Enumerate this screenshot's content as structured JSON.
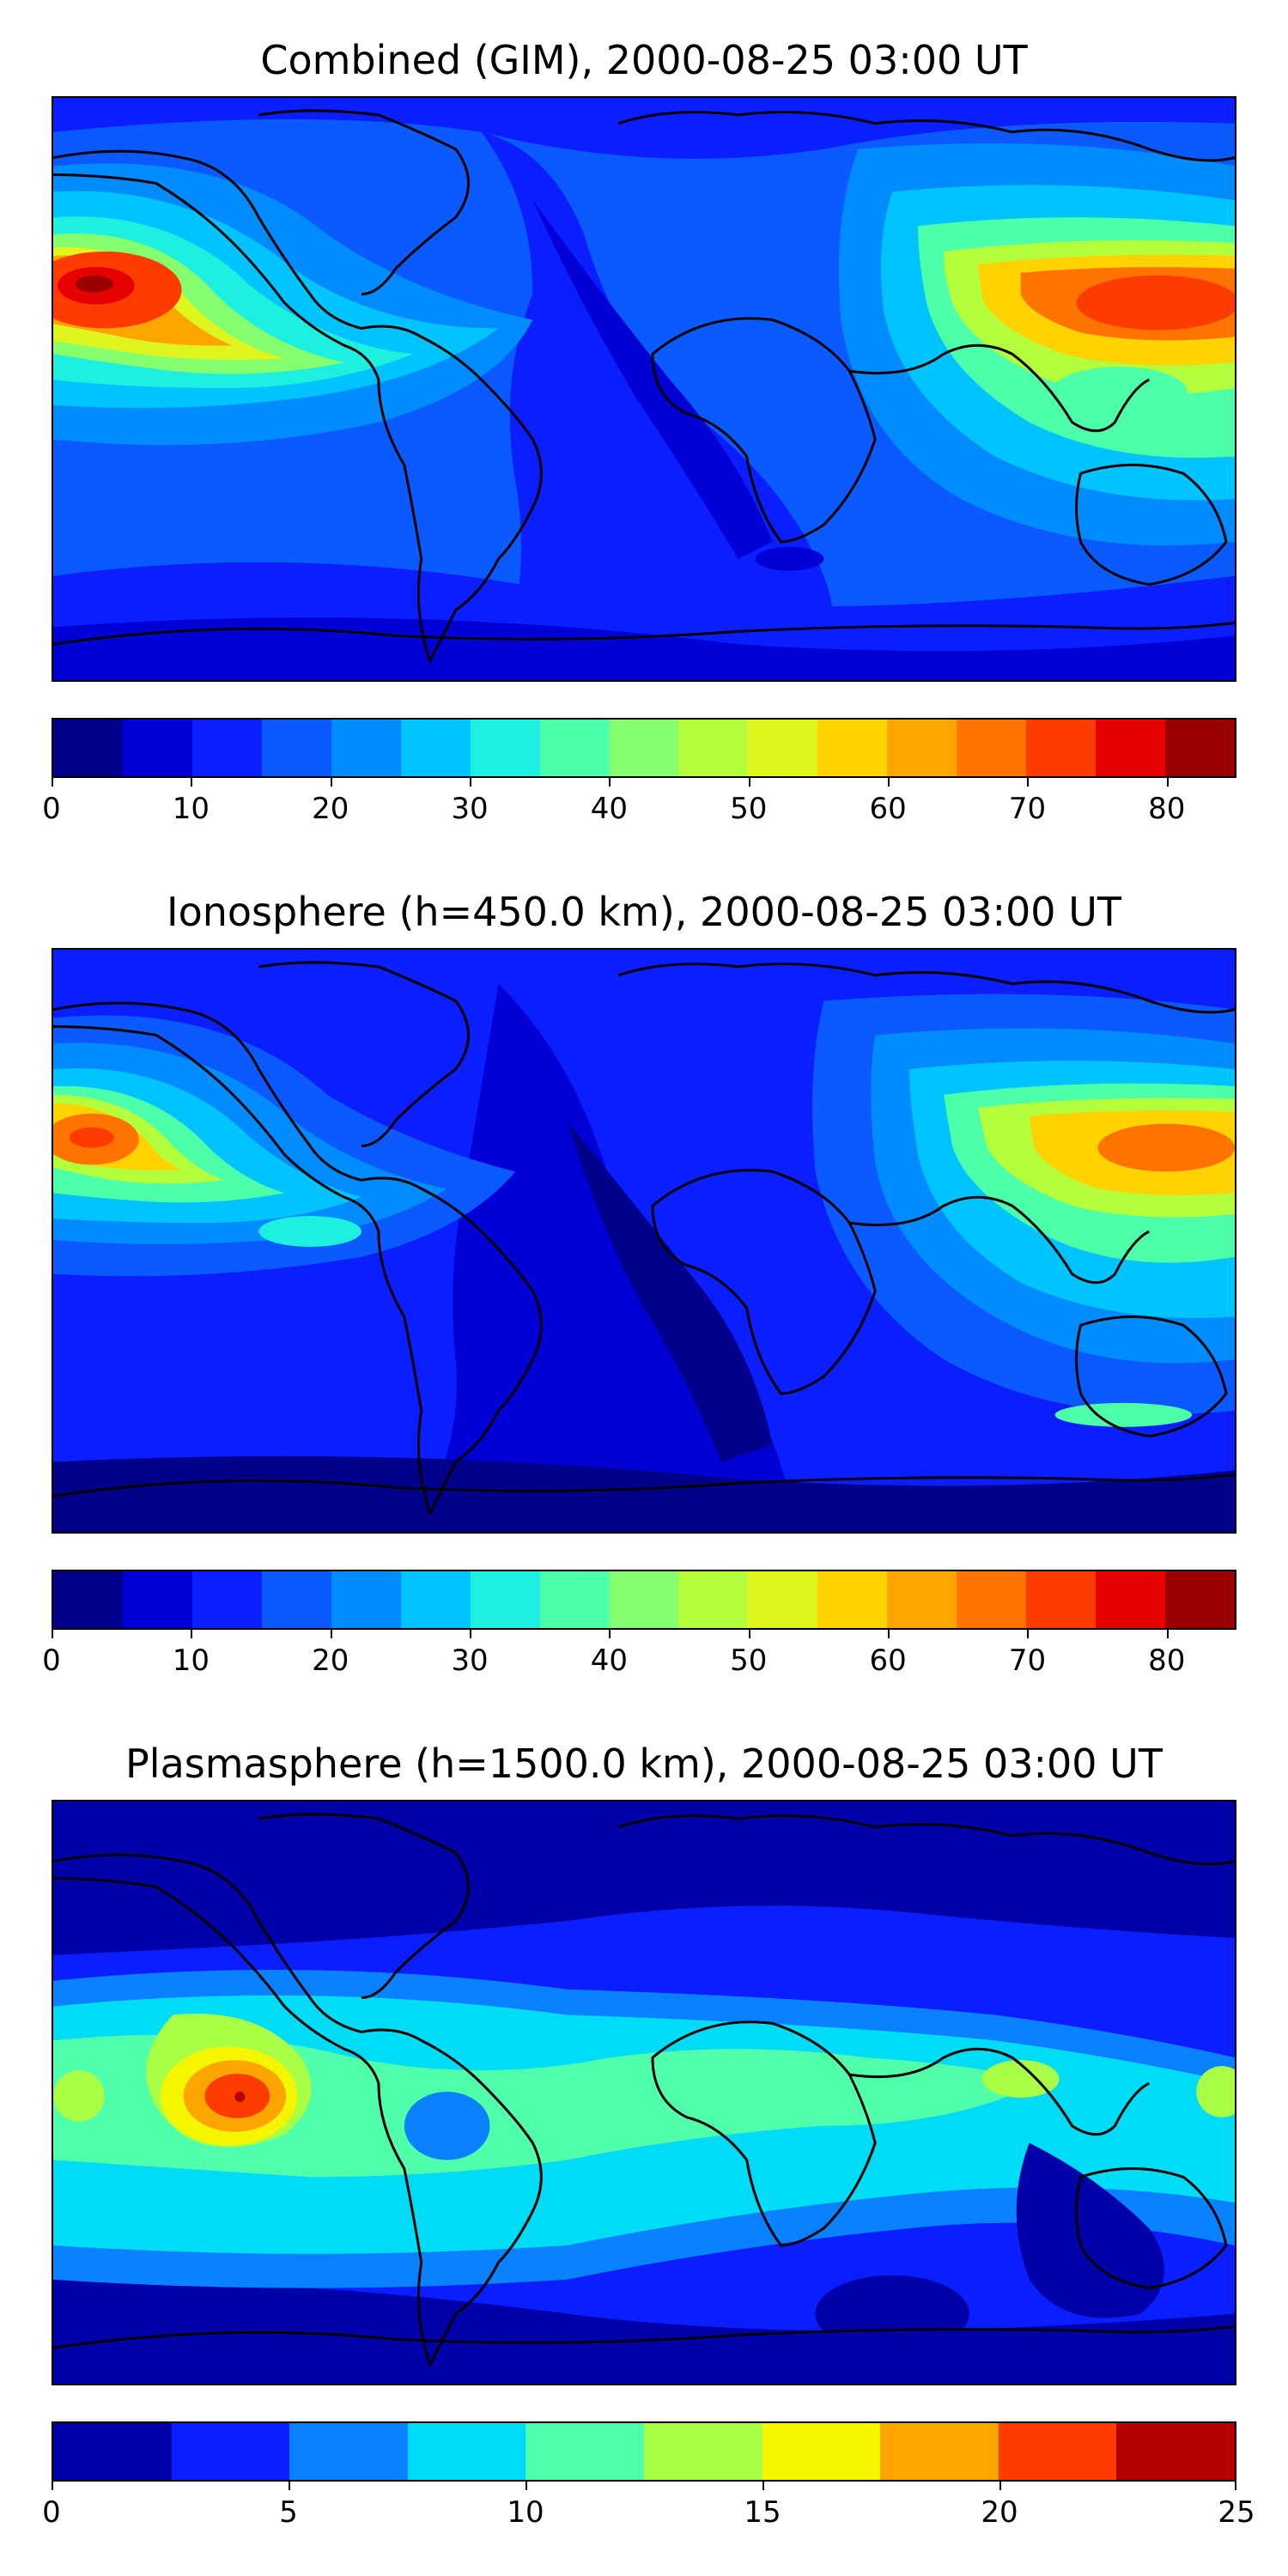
{
  "panels": [
    {
      "title": "Combined (GIM), 2000-08-25 03:00 UT",
      "colorbar": {
        "min": 0,
        "max": 85,
        "tick_labels": [
          "0",
          "10",
          "20",
          "30",
          "40",
          "50",
          "60",
          "70",
          "80"
        ],
        "tick_values": [
          0,
          10,
          20,
          30,
          40,
          50,
          60,
          70,
          80
        ],
        "colors": [
          "#00008b",
          "#0000d6",
          "#0a1eff",
          "#0a5aff",
          "#008cff",
          "#00c4ff",
          "#1ef0e0",
          "#4cffa8",
          "#86ff6e",
          "#b4ff3c",
          "#e0f51e",
          "#ffd200",
          "#ffa500",
          "#ff7300",
          "#ff3c00",
          "#e60000",
          "#9b0000"
        ]
      }
    },
    {
      "title": "Ionosphere  (h=450.0 km), 2000-08-25 03:00 UT",
      "colorbar": {
        "min": 0,
        "max": 85,
        "tick_labels": [
          "0",
          "10",
          "20",
          "30",
          "40",
          "50",
          "60",
          "70",
          "80"
        ],
        "tick_values": [
          0,
          10,
          20,
          30,
          40,
          50,
          60,
          70,
          80
        ],
        "colors": [
          "#00008b",
          "#0000d6",
          "#0a1eff",
          "#0a5aff",
          "#008cff",
          "#00c4ff",
          "#1ef0e0",
          "#4cffa8",
          "#86ff6e",
          "#b4ff3c",
          "#e0f51e",
          "#ffd200",
          "#ffa500",
          "#ff7300",
          "#ff3c00",
          "#e60000",
          "#9b0000"
        ]
      }
    },
    {
      "title": "Plasmasphere (h=1500.0 km), 2000-08-25 03:00 UT",
      "colorbar": {
        "min": 0,
        "max": 25,
        "tick_labels": [
          "0",
          "5",
          "10",
          "15",
          "20",
          "25"
        ],
        "tick_values": [
          0,
          5,
          10,
          15,
          20,
          25
        ],
        "colors": [
          "#0000a8",
          "#0a1eff",
          "#0a82ff",
          "#00dcf5",
          "#50ffaa",
          "#a8ff46",
          "#f5f500",
          "#ffa500",
          "#ff3c00",
          "#b40000"
        ]
      }
    }
  ]
}
